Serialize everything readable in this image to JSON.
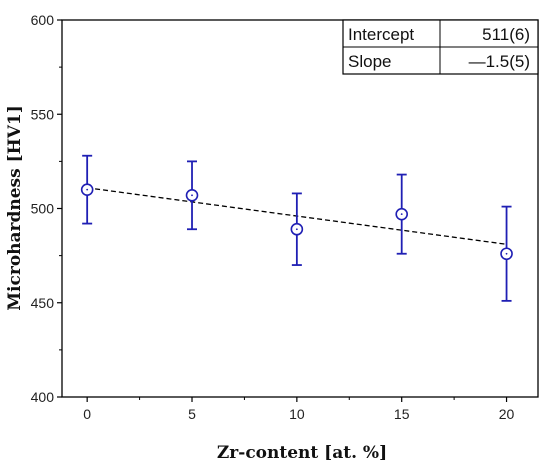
{
  "chart_data": {
    "type": "scatter",
    "xlabel": "Zr-content [at. %]",
    "ylabel": "Microhardness [HV1]",
    "xlim": [
      -1.2,
      21.5
    ],
    "ylim": [
      400,
      600
    ],
    "x_ticks": [
      0,
      5,
      10,
      15,
      20
    ],
    "y_ticks": [
      400,
      450,
      500,
      550,
      600
    ],
    "x": [
      0,
      5,
      10,
      15,
      20
    ],
    "y": [
      510,
      507,
      489,
      497,
      476
    ],
    "y_error": [
      18,
      18,
      19,
      21,
      25
    ],
    "fit_line": {
      "x": [
        0,
        20
      ],
      "y": [
        511,
        481
      ],
      "style": "dashed"
    },
    "fit_table": [
      {
        "label": "Intercept",
        "value": "511(6)"
      },
      {
        "label": "Slope",
        "value": "—1.5(5)"
      }
    ],
    "marker": "open-circle",
    "grid": false,
    "colors": {
      "points": "#1f1fb4",
      "fit_line": "#000000",
      "axes": "#000000"
    }
  }
}
